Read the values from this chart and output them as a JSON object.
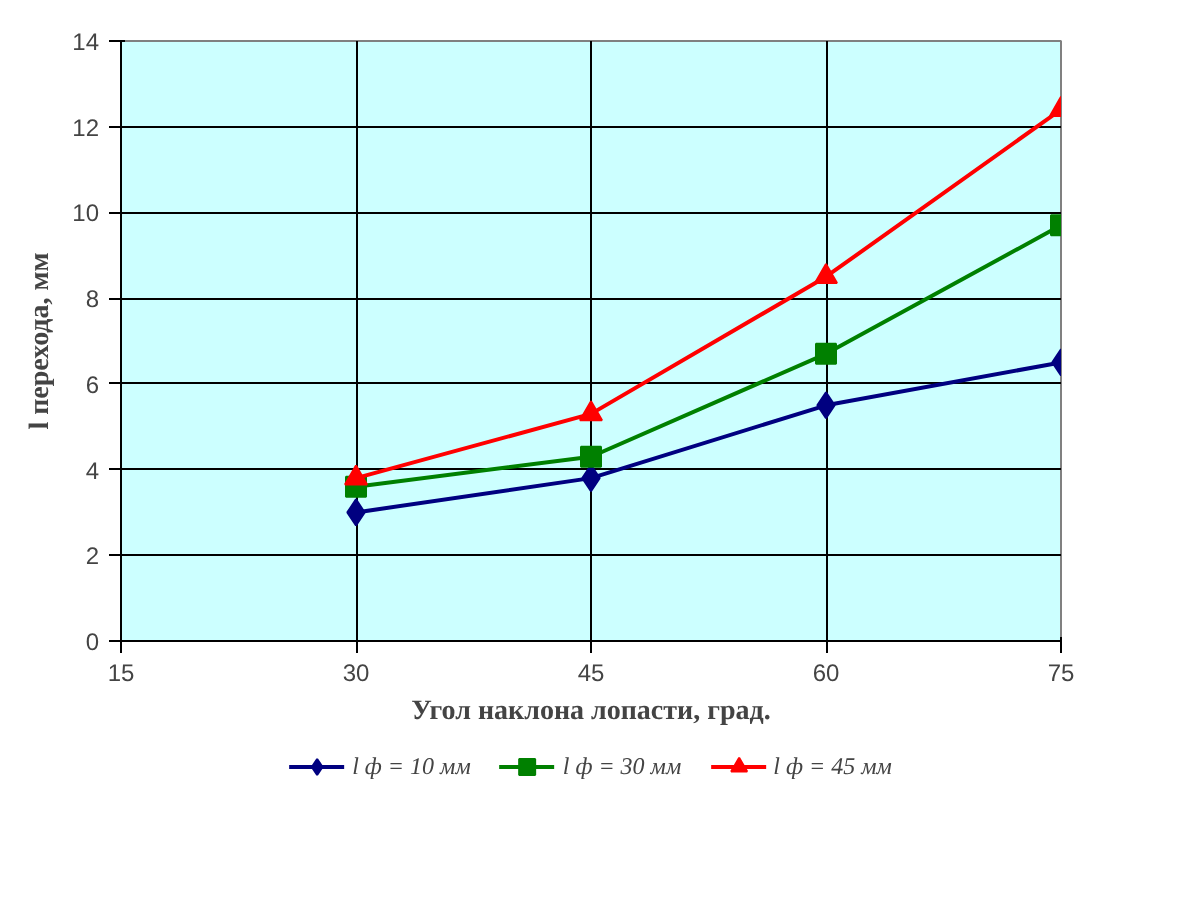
{
  "chart_data": {
    "type": "line",
    "xlabel": "Угол наклона лопасти, град.",
    "ylabel": "l перехода, мм",
    "x": [
      30,
      45,
      60,
      75
    ],
    "series": [
      {
        "name": "l ф = 10 мм",
        "color": "#000080",
        "values": [
          3.0,
          3.8,
          5.5,
          6.5
        ],
        "marker": "diamond"
      },
      {
        "name": "l ф = 30 мм",
        "color": "#008000",
        "values": [
          3.6,
          4.3,
          6.7,
          9.7
        ],
        "marker": "square"
      },
      {
        "name": "l ф = 45 мм",
        "color": "#ff0000",
        "values": [
          3.8,
          5.3,
          8.5,
          12.4
        ],
        "marker": "triangle"
      }
    ],
    "xlim": [
      15,
      75
    ],
    "xticks": [
      15,
      30,
      45,
      60,
      75
    ],
    "ylim": [
      0,
      14
    ],
    "yticks": [
      0,
      2,
      4,
      6,
      8,
      10,
      12,
      14
    ],
    "grid": true,
    "legend": "bottom",
    "line_style": "solid"
  }
}
